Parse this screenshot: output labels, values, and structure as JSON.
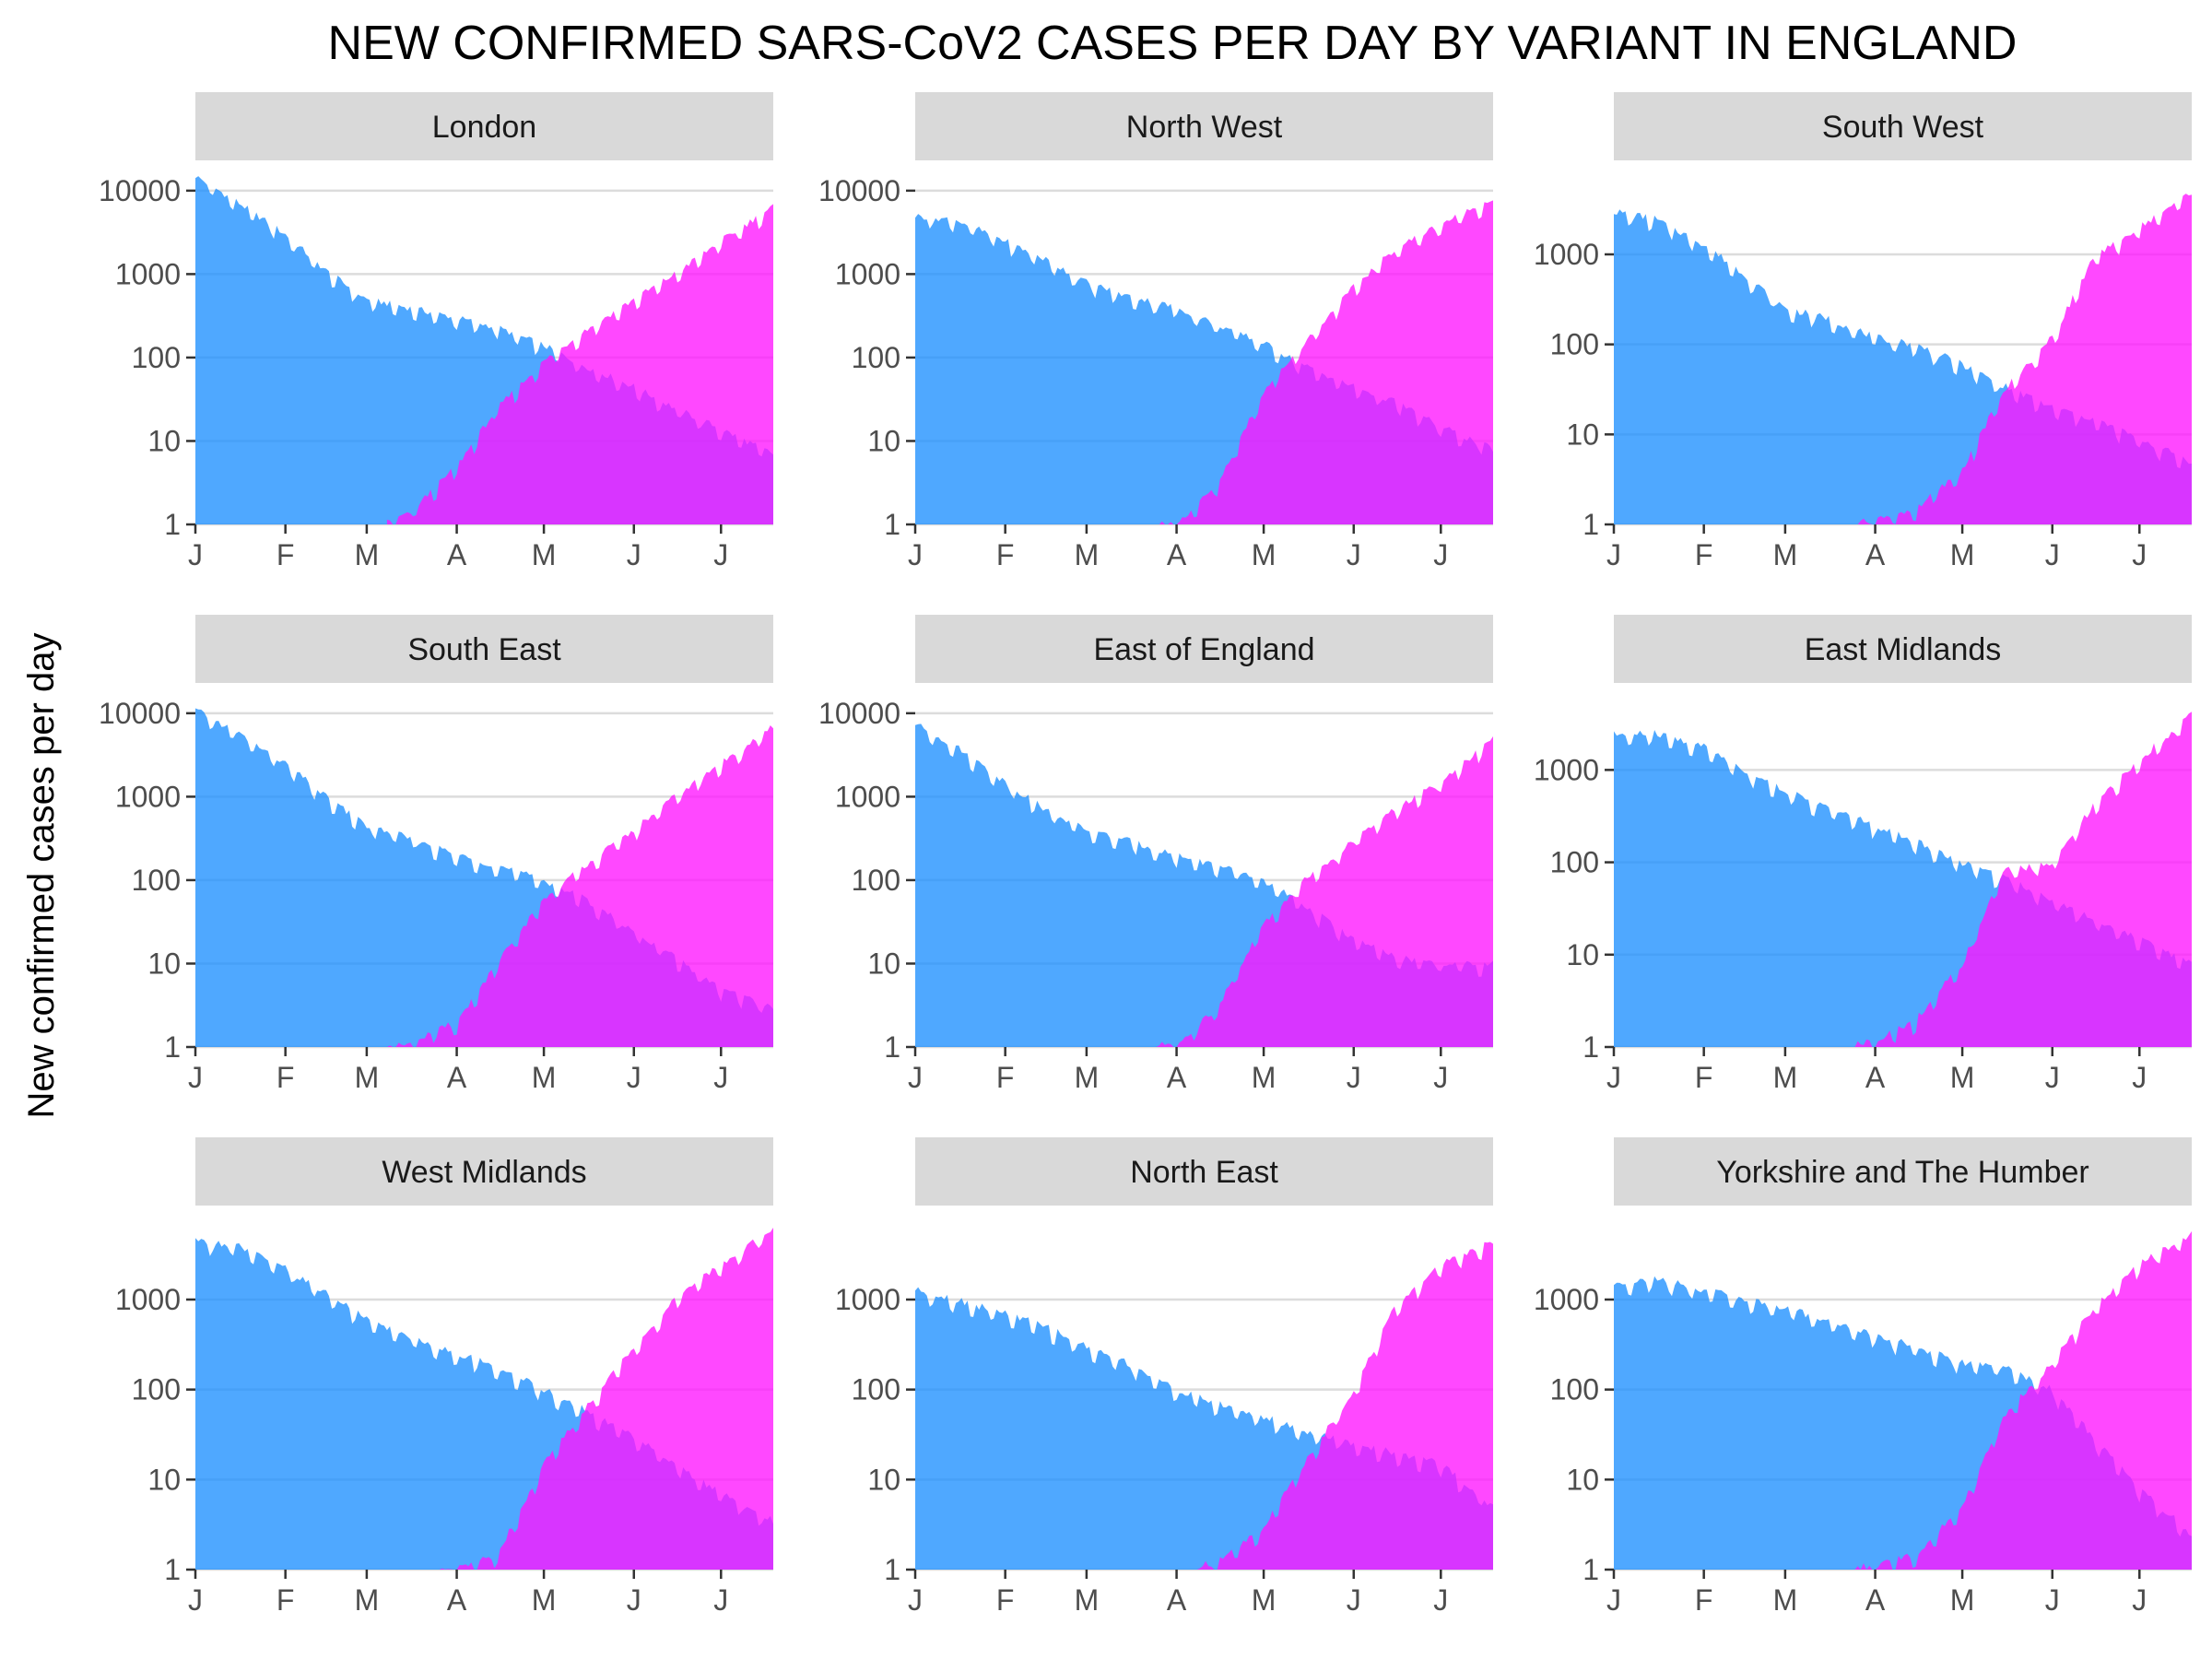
{
  "title": "NEW CONFIRMED SARS-CoV2 CASES PER DAY BY VARIANT IN ENGLAND",
  "ylabel": "New confirmed cases per day",
  "colors": {
    "blue_variant": "#1e90ff",
    "pink_variant": "#ff14ff",
    "overlap": "#9b30ff",
    "strip": "#d9d9d9",
    "grid": "#dcdcdc"
  },
  "chart_data": {
    "type": "area",
    "layout": "facet-grid-3x3",
    "title": "NEW CONFIRMED SARS-CoV2 CASES PER DAY BY VARIANT IN ENGLAND",
    "ylabel": "New confirmed cases per day",
    "xlabel": "",
    "x_tick_labels": [
      "J",
      "F",
      "M",
      "A",
      "M",
      "J",
      "J"
    ],
    "x_tick_dates": [
      "2021-01-01",
      "2021-02-01",
      "2021-03-01",
      "2021-04-01",
      "2021-05-01",
      "2021-06-01",
      "2021-07-01"
    ],
    "x_range": [
      "2021-01-01",
      "2021-07-19"
    ],
    "y_scale": "log10",
    "grid": "horizontal major",
    "legend": "none",
    "series_note_colors": [
      "#1e90ff",
      "#ff14ff"
    ],
    "panels": [
      {
        "label": "London",
        "ylim": [
          1,
          10000
        ],
        "y_ticks": [
          "1",
          "10",
          "100",
          "1000",
          "10000"
        ],
        "dates": [
          "2021-01-01",
          "2021-01-15",
          "2021-02-01",
          "2021-02-15",
          "2021-03-01",
          "2021-03-15",
          "2021-04-01",
          "2021-04-15",
          "2021-05-01",
          "2021-05-15",
          "2021-06-01",
          "2021-06-15",
          "2021-07-01",
          "2021-07-19"
        ],
        "blue": [
          15000,
          7500,
          3000,
          1100,
          500,
          400,
          300,
          230,
          140,
          80,
          45,
          25,
          14,
          7
        ],
        "pink": [
          null,
          null,
          null,
          null,
          null,
          1.3,
          5,
          25,
          90,
          210,
          500,
          1000,
          2500,
          6500
        ]
      },
      {
        "label": "North West",
        "ylim": [
          1,
          10000
        ],
        "y_ticks": [
          "1",
          "10",
          "100",
          "1000",
          "10000"
        ],
        "dates": [
          "2021-01-01",
          "2021-01-15",
          "2021-02-01",
          "2021-02-15",
          "2021-03-01",
          "2021-03-15",
          "2021-04-01",
          "2021-04-15",
          "2021-05-01",
          "2021-05-15",
          "2021-06-01",
          "2021-06-15",
          "2021-07-01",
          "2021-07-19"
        ],
        "blue": [
          5000,
          4500,
          2500,
          1500,
          800,
          550,
          400,
          250,
          150,
          80,
          45,
          30,
          15,
          8
        ],
        "pink": [
          null,
          null,
          null,
          null,
          null,
          null,
          1,
          3,
          40,
          150,
          700,
          2000,
          4000,
          8000
        ]
      },
      {
        "label": "South West",
        "ylim": [
          1,
          5000
        ],
        "y_ticks": [
          "1",
          "10",
          "100",
          "1000"
        ],
        "dates": [
          "2021-01-01",
          "2021-01-15",
          "2021-02-01",
          "2021-02-15",
          "2021-03-01",
          "2021-03-15",
          "2021-04-01",
          "2021-04-15",
          "2021-05-01",
          "2021-05-15",
          "2021-06-01",
          "2021-06-15",
          "2021-07-01",
          "2021-07-19"
        ],
        "blue": [
          3000,
          2500,
          1300,
          600,
          250,
          200,
          120,
          100,
          60,
          35,
          20,
          15,
          9,
          5
        ],
        "pink": [
          null,
          null,
          null,
          null,
          null,
          null,
          1.1,
          1.5,
          4,
          30,
          120,
          900,
          2000,
          5000
        ]
      },
      {
        "label": "South East",
        "ylim": [
          1,
          10000
        ],
        "y_ticks": [
          "1",
          "10",
          "100",
          "1000",
          "10000"
        ],
        "dates": [
          "2021-01-01",
          "2021-01-15",
          "2021-02-01",
          "2021-02-15",
          "2021-03-01",
          "2021-03-15",
          "2021-04-01",
          "2021-04-15",
          "2021-05-01",
          "2021-05-15",
          "2021-06-01",
          "2021-06-15",
          "2021-07-01",
          "2021-07-19"
        ],
        "blue": [
          11000,
          6000,
          2500,
          1000,
          450,
          330,
          200,
          150,
          100,
          60,
          25,
          12,
          5,
          3
        ],
        "pink": [
          null,
          null,
          null,
          null,
          null,
          1.1,
          2,
          10,
          60,
          150,
          400,
          1000,
          2500,
          7000
        ]
      },
      {
        "label": "East of England",
        "ylim": [
          1,
          10000
        ],
        "y_ticks": [
          "1",
          "10",
          "100",
          "1000",
          "10000"
        ],
        "dates": [
          "2021-01-01",
          "2021-01-15",
          "2021-02-01",
          "2021-02-15",
          "2021-03-01",
          "2021-03-15",
          "2021-04-01",
          "2021-04-15",
          "2021-05-01",
          "2021-05-15",
          "2021-06-01",
          "2021-06-15",
          "2021-07-01",
          "2021-07-19"
        ],
        "blue": [
          7500,
          4000,
          1500,
          700,
          400,
          300,
          200,
          150,
          100,
          50,
          20,
          12,
          10,
          10
        ],
        "pink": [
          null,
          null,
          null,
          null,
          null,
          null,
          1.1,
          3,
          30,
          100,
          300,
          700,
          1500,
          5000
        ]
      },
      {
        "label": "East Midlands",
        "ylim": [
          1,
          4000
        ],
        "y_ticks": [
          "1",
          "10",
          "100",
          "1000"
        ],
        "dates": [
          "2021-01-01",
          "2021-01-15",
          "2021-02-01",
          "2021-02-15",
          "2021-03-01",
          "2021-03-15",
          "2021-04-01",
          "2021-04-15",
          "2021-05-01",
          "2021-05-15",
          "2021-06-01",
          "2021-06-15",
          "2021-07-01",
          "2021-07-19"
        ],
        "blue": [
          2400,
          2500,
          1800,
          1000,
          600,
          400,
          250,
          170,
          100,
          70,
          40,
          25,
          15,
          8
        ],
        "pink": [
          null,
          null,
          null,
          null,
          null,
          null,
          1.2,
          2,
          8,
          80,
          100,
          400,
          1300,
          4000
        ]
      },
      {
        "label": "West Midlands",
        "ylim": [
          1,
          5000
        ],
        "y_ticks": [
          "1",
          "10",
          "100",
          "1000"
        ],
        "dates": [
          "2021-01-01",
          "2021-01-15",
          "2021-02-01",
          "2021-02-15",
          "2021-03-01",
          "2021-03-15",
          "2021-04-01",
          "2021-04-15",
          "2021-05-01",
          "2021-05-15",
          "2021-06-01",
          "2021-06-15",
          "2021-07-01",
          "2021-07-19"
        ],
        "blue": [
          4500,
          4000,
          2200,
          1200,
          600,
          400,
          250,
          180,
          100,
          60,
          30,
          15,
          7,
          3.5
        ],
        "pink": [
          null,
          null,
          null,
          null,
          null,
          null,
          1,
          1.5,
          15,
          60,
          300,
          1000,
          2500,
          6000
        ]
      },
      {
        "label": "North East",
        "ylim": [
          1,
          5000
        ],
        "y_ticks": [
          "1",
          "10",
          "100",
          "1000"
        ],
        "dates": [
          "2021-01-01",
          "2021-01-15",
          "2021-02-01",
          "2021-02-15",
          "2021-03-01",
          "2021-03-15",
          "2021-04-01",
          "2021-04-15",
          "2021-05-01",
          "2021-05-15",
          "2021-06-01",
          "2021-06-15",
          "2021-07-01",
          "2021-07-19"
        ],
        "blue": [
          1300,
          1000,
          700,
          500,
          300,
          200,
          100,
          70,
          50,
          35,
          25,
          20,
          15,
          5
        ],
        "pink": [
          null,
          null,
          null,
          null,
          null,
          null,
          null,
          1.2,
          3,
          15,
          100,
          800,
          2500,
          4500
        ]
      },
      {
        "label": "Yorkshire and The Humber",
        "ylim": [
          1,
          5000
        ],
        "y_ticks": [
          "1",
          "10",
          "100",
          "1000"
        ],
        "dates": [
          "2021-01-01",
          "2021-01-15",
          "2021-02-01",
          "2021-02-15",
          "2021-03-01",
          "2021-03-15",
          "2021-04-01",
          "2021-04-15",
          "2021-05-01",
          "2021-05-15",
          "2021-06-01",
          "2021-06-15",
          "2021-07-01",
          "2021-07-19"
        ],
        "blue": [
          1500,
          1700,
          1300,
          1000,
          800,
          600,
          400,
          300,
          200,
          180,
          100,
          30,
          8,
          2.5
        ],
        "pink": [
          null,
          null,
          null,
          null,
          null,
          null,
          1.1,
          1.5,
          5,
          50,
          200,
          800,
          2500,
          5500
        ]
      }
    ]
  }
}
